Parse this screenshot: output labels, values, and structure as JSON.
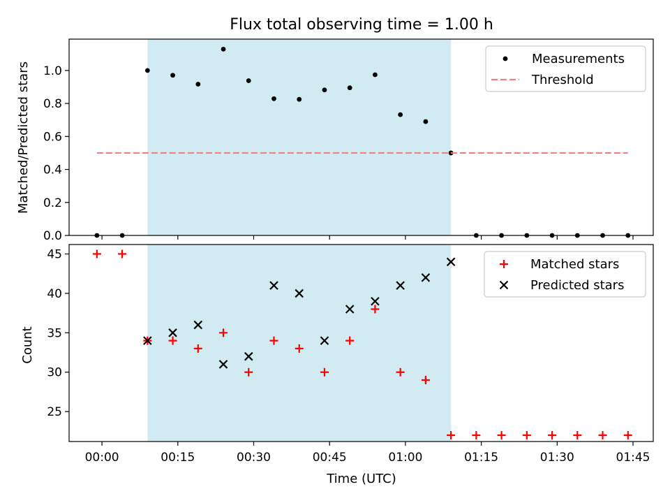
{
  "title": "Flux total observing time = 1.00 h",
  "chart_data": [
    {
      "type": "scatter",
      "ylabel": "Matched/Predicted stars",
      "ylim": [
        0,
        1.19
      ],
      "xlim": [
        -6.5,
        109
      ],
      "yticks": [
        0.0,
        0.2,
        0.4,
        0.6,
        0.8,
        1.0
      ],
      "ytick_labels": [
        "0.0",
        "0.2",
        "0.4",
        "0.6",
        "0.8",
        "1.0"
      ],
      "shaded_span": [
        9,
        69
      ],
      "shade_color": "#add8e6",
      "legend_position": "upper right",
      "series": [
        {
          "name": "Measurements",
          "marker": "dot",
          "color": "#000000",
          "x": [
            -1,
            4,
            9,
            14,
            19,
            24,
            29,
            34,
            39,
            44,
            49,
            54,
            59,
            64,
            69,
            74,
            79,
            84,
            89,
            94,
            99,
            104
          ],
          "y": [
            0.0,
            0.0,
            1.0,
            0.971,
            0.917,
            1.129,
            0.938,
            0.829,
            0.825,
            0.882,
            0.895,
            0.974,
            0.732,
            0.69,
            0.5,
            0.0,
            0.0,
            0.0,
            0.0,
            0.0,
            0.0,
            0.0
          ]
        },
        {
          "name": "Threshold",
          "marker": "dashed-line",
          "color": "#f08080",
          "x": [
            -1,
            104
          ],
          "y": [
            0.5,
            0.5
          ]
        }
      ]
    },
    {
      "type": "scatter",
      "xlabel": "Time (UTC)",
      "ylabel": "Count",
      "ylim": [
        21.2,
        46.2
      ],
      "xlim": [
        -6.5,
        109
      ],
      "yticks": [
        25,
        30,
        35,
        40,
        45
      ],
      "ytick_labels": [
        "25",
        "30",
        "35",
        "40",
        "45"
      ],
      "xticks": [
        0,
        15,
        30,
        45,
        60,
        75,
        90,
        105
      ],
      "xtick_labels": [
        "00:00",
        "00:15",
        "00:30",
        "00:45",
        "01:00",
        "01:15",
        "01:30",
        "01:45"
      ],
      "shaded_span": [
        9,
        69
      ],
      "shade_color": "#add8e6",
      "legend_position": "upper right",
      "series": [
        {
          "name": "Matched stars",
          "marker": "plus",
          "color": "#ff0000",
          "x": [
            -1,
            4,
            9,
            14,
            19,
            24,
            29,
            34,
            39,
            44,
            49,
            54,
            59,
            64,
            69,
            74,
            79,
            84,
            89,
            94,
            99,
            104
          ],
          "y": [
            45,
            45,
            34,
            34,
            33,
            35,
            30,
            34,
            33,
            30,
            34,
            38,
            30,
            29,
            22,
            22,
            22,
            22,
            22,
            22,
            22,
            22
          ]
        },
        {
          "name": "Predicted stars",
          "marker": "x",
          "color": "#000000",
          "x": [
            9,
            14,
            19,
            24,
            29,
            34,
            39,
            44,
            49,
            54,
            59,
            64,
            69
          ],
          "y": [
            34,
            35,
            36,
            31,
            32,
            41,
            40,
            34,
            38,
            39,
            41,
            42,
            44
          ]
        }
      ]
    }
  ]
}
